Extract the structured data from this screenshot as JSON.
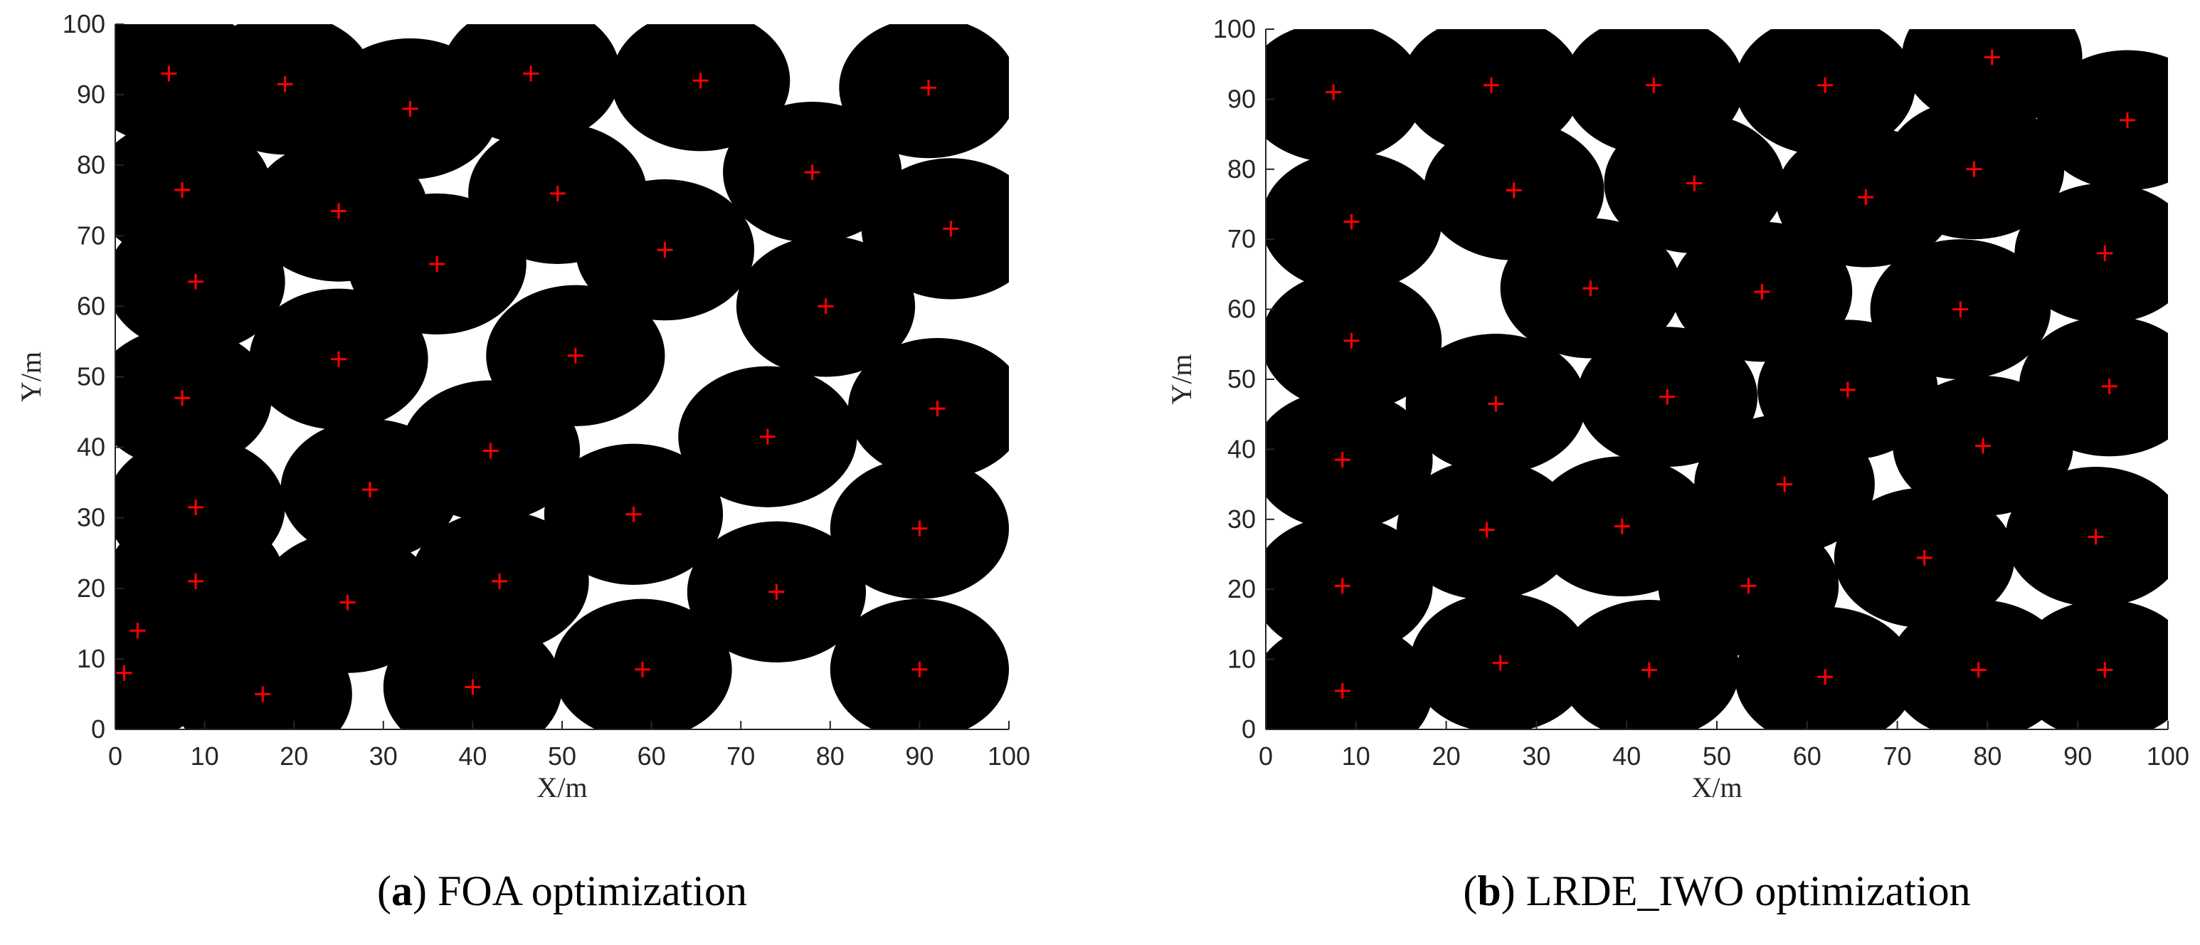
{
  "chart_data": [
    {
      "type": "scatter",
      "xlabel": "X/m",
      "ylabel": "Y/m",
      "caption_parts": [
        "(",
        "a",
        ") FOA optimization"
      ],
      "xlim": [
        0,
        100
      ],
      "ylim": [
        0,
        100
      ],
      "xticks": [
        0,
        10,
        20,
        30,
        40,
        50,
        60,
        70,
        80,
        90,
        100
      ],
      "yticks": [
        0,
        10,
        20,
        30,
        40,
        50,
        60,
        70,
        80,
        90,
        100
      ],
      "radius": 10,
      "coverage_color": "#000000",
      "marker_color": "#ff0000",
      "x": [
        6,
        19,
        33,
        46.5,
        65.5,
        91,
        7.5,
        25,
        49.5,
        78,
        93.5,
        36,
        61.5,
        9,
        79.5,
        25,
        51.5,
        7.5,
        92,
        73,
        42,
        28.5,
        9,
        58,
        90,
        9,
        43,
        26,
        74,
        2.5,
        1,
        59,
        90,
        16.5,
        40
      ],
      "y": [
        93,
        91.5,
        88,
        93,
        92,
        91,
        76.5,
        73.5,
        76,
        79,
        71,
        66,
        68,
        63.5,
        60,
        52.5,
        53,
        47,
        45.5,
        41.5,
        39.5,
        34,
        31.5,
        30.5,
        28.5,
        21,
        21,
        18,
        19.5,
        14,
        8,
        8.5,
        8.5,
        5,
        6
      ]
    },
    {
      "type": "scatter",
      "xlabel": "X/m",
      "ylabel": "Y/m",
      "caption_parts": [
        "(",
        "b",
        ") LRDE_IWO optimization"
      ],
      "xlim": [
        0,
        100
      ],
      "ylim": [
        0,
        100
      ],
      "xticks": [
        0,
        10,
        20,
        30,
        40,
        50,
        60,
        70,
        80,
        90,
        100
      ],
      "yticks": [
        0,
        10,
        20,
        30,
        40,
        50,
        60,
        70,
        80,
        90,
        100
      ],
      "radius": 10,
      "coverage_color": "#000000",
      "marker_color": "#ff0000",
      "x": [
        7.5,
        25,
        43,
        62,
        80.5,
        95.5,
        9.5,
        27.5,
        47.5,
        66.5,
        78.5,
        93,
        36,
        55,
        77,
        9.5,
        25.5,
        44.5,
        64.5,
        93.5,
        8.5,
        79.5,
        57.5,
        24.5,
        39.5,
        92,
        73,
        8.5,
        53.5,
        8.5,
        26,
        42.5,
        62,
        79,
        93
      ],
      "y": [
        91,
        92,
        92,
        92,
        96,
        87,
        72.5,
        77,
        78,
        76,
        80,
        68,
        63,
        62.5,
        60,
        55.5,
        46.5,
        47.5,
        48.5,
        49,
        38.5,
        40.5,
        35,
        28.5,
        29,
        27.5,
        24.5,
        20.5,
        20.5,
        5.5,
        9.5,
        8.5,
        7.5,
        8.5,
        8.5
      ]
    }
  ]
}
